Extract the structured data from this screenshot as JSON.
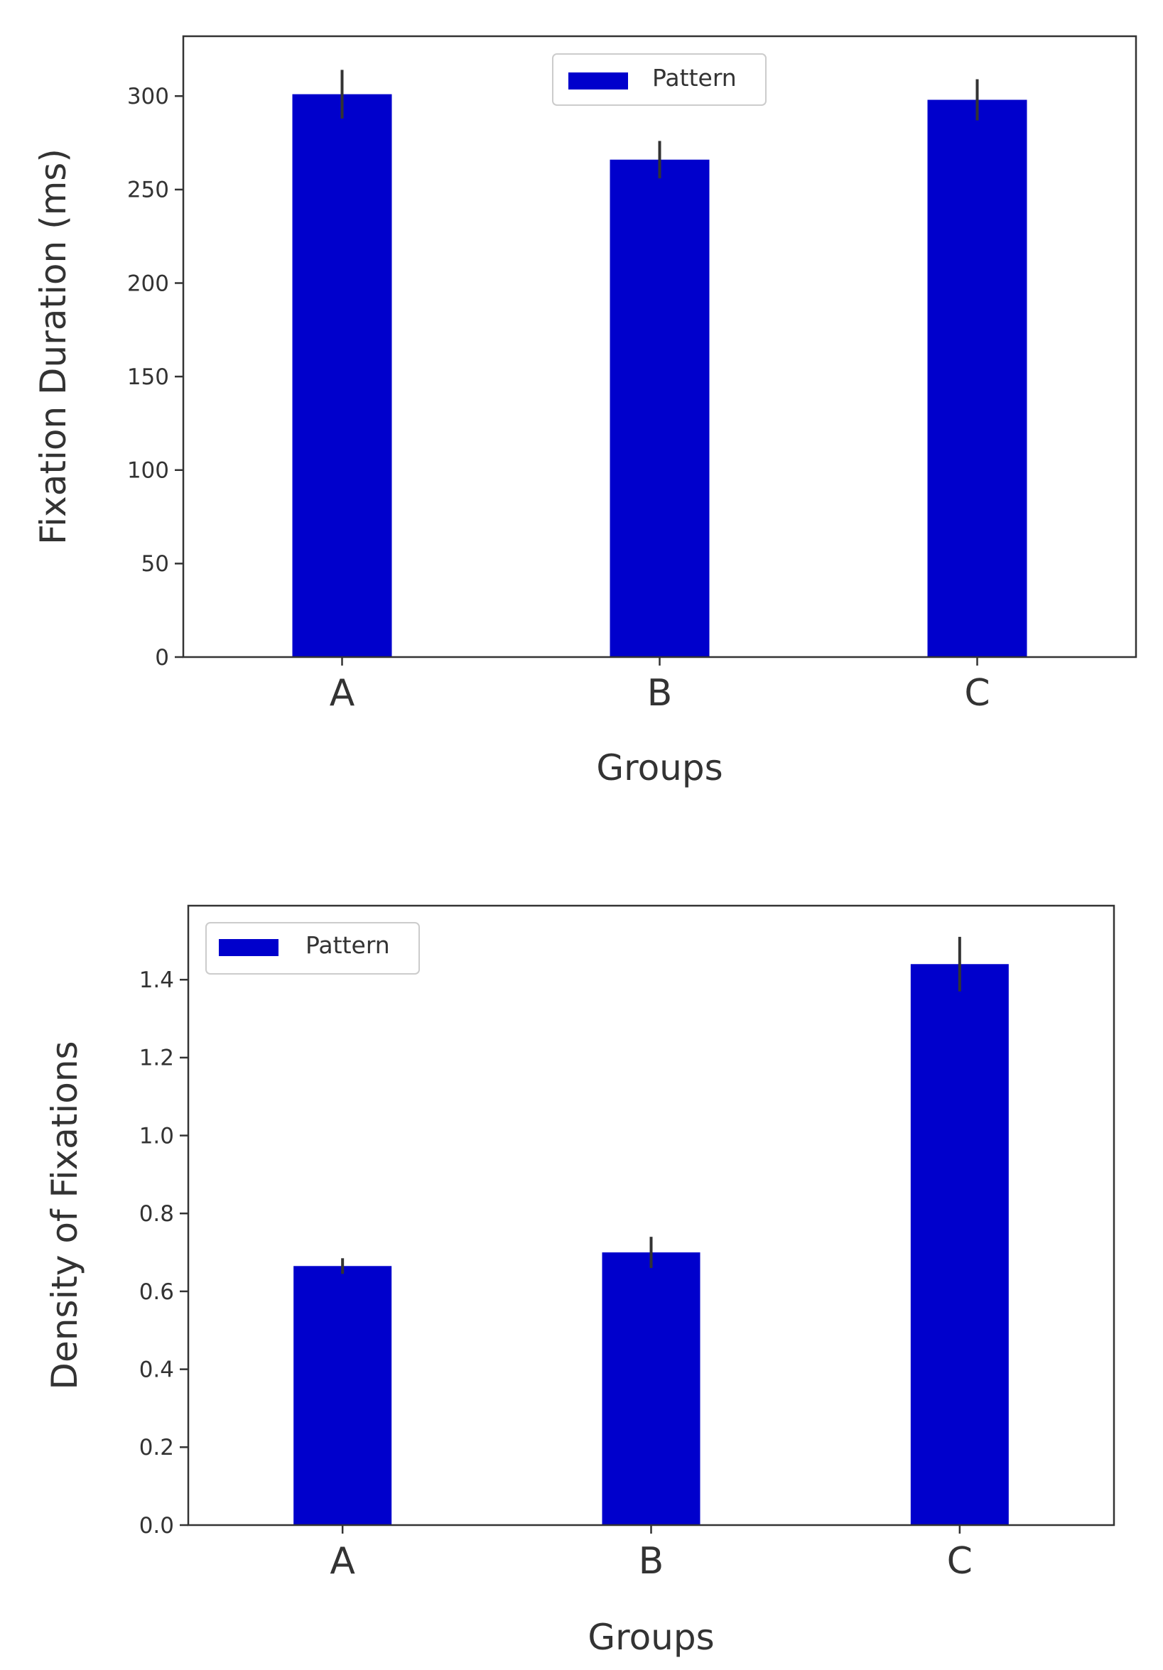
{
  "chart_data": [
    {
      "type": "bar",
      "title": "",
      "categories": [
        "A",
        "B",
        "C"
      ],
      "series": [
        {
          "name": "Pattern",
          "values": [
            301,
            266,
            298
          ],
          "errors": [
            13,
            10,
            11
          ],
          "color": "#0000cc"
        }
      ],
      "xlabel": "Groups",
      "ylabel": "Fixation Duration (ms)",
      "ylim": [
        0,
        332
      ],
      "yticks": [
        0,
        50,
        100,
        150,
        200,
        250,
        300
      ],
      "ytick_labels": [
        "0",
        "50",
        "100",
        "150",
        "200",
        "250",
        "300"
      ],
      "legend": {
        "label": "Pattern",
        "position": "upper-center"
      },
      "grid": false
    },
    {
      "type": "bar",
      "title": "",
      "categories": [
        "A",
        "B",
        "C"
      ],
      "series": [
        {
          "name": "Pattern",
          "values": [
            0.665,
            0.7,
            1.44
          ],
          "errors": [
            0.02,
            0.04,
            0.07
          ],
          "color": "#0000cc"
        }
      ],
      "xlabel": "Groups",
      "ylabel": "Density of Fixations",
      "ylim": [
        0,
        1.59
      ],
      "yticks": [
        0.0,
        0.2,
        0.4,
        0.6,
        0.8,
        1.0,
        1.2,
        1.4
      ],
      "ytick_labels": [
        "0.0",
        "0.2",
        "0.4",
        "0.6",
        "0.8",
        "1.0",
        "1.2",
        "1.4"
      ],
      "legend": {
        "label": "Pattern",
        "position": "upper-left"
      },
      "grid": false
    }
  ]
}
